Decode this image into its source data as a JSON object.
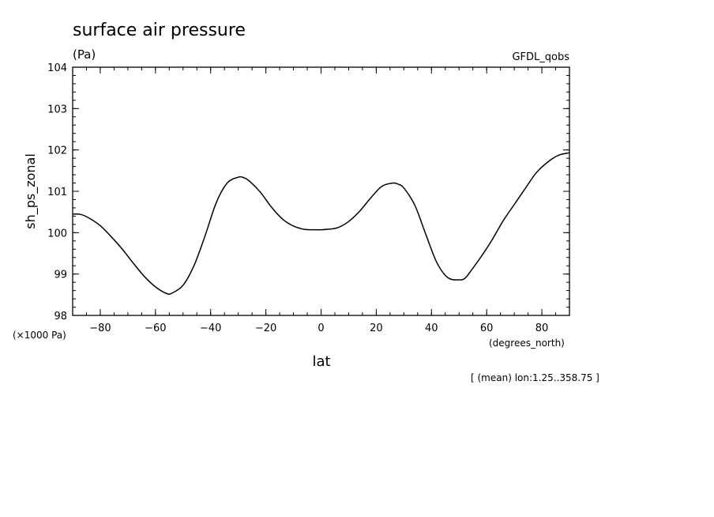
{
  "chart_data": {
    "type": "line",
    "title": "surface air pressure",
    "units": "(Pa)",
    "source_label": "GFDL_qobs",
    "ylabel": "sh_ps_zonal",
    "xlabel": "lat",
    "x_units": "(degrees_north)",
    "y_scale_note": "(×1000 Pa)",
    "footnote": "[ (mean) lon:1.25..358.75 ]",
    "xlim": [
      -90,
      90
    ],
    "ylim": [
      98,
      104
    ],
    "x_ticks": [
      -80,
      -60,
      -40,
      -20,
      0,
      20,
      40,
      60,
      80
    ],
    "x_tick_labels": [
      "−80",
      "−60",
      "−40",
      "−20",
      "0",
      "20",
      "40",
      "60",
      "80"
    ],
    "y_ticks": [
      98,
      99,
      100,
      101,
      102,
      103,
      104
    ],
    "y_tick_labels": [
      "98",
      "99",
      "100",
      "101",
      "102",
      "103",
      "104"
    ],
    "x_minor_step": 5,
    "y_minor_step": 0.2,
    "grid": false,
    "series": [
      {
        "color": "#000000",
        "x": [
          -90,
          -87,
          -84,
          -80,
          -76,
          -72,
          -68,
          -64,
          -60,
          -56,
          -54,
          -50,
          -46,
          -42,
          -38,
          -34,
          -30,
          -28,
          -26,
          -22,
          -18,
          -14,
          -10,
          -6,
          -2,
          0,
          2,
          6,
          10,
          14,
          18,
          22,
          26,
          28,
          30,
          34,
          38,
          42,
          46,
          50,
          52,
          54,
          58,
          62,
          66,
          70,
          74,
          78,
          82,
          86,
          90
        ],
        "y": [
          100.45,
          100.44,
          100.35,
          100.17,
          99.9,
          99.6,
          99.26,
          98.94,
          98.69,
          98.53,
          98.54,
          98.73,
          99.21,
          99.93,
          100.72,
          101.2,
          101.34,
          101.33,
          101.25,
          100.98,
          100.62,
          100.33,
          100.16,
          100.08,
          100.07,
          100.07,
          100.08,
          100.12,
          100.27,
          100.52,
          100.84,
          101.12,
          101.2,
          101.17,
          101.08,
          100.66,
          99.95,
          99.27,
          98.91,
          98.86,
          98.89,
          99.05,
          99.42,
          99.83,
          100.29,
          100.68,
          101.07,
          101.45,
          101.7,
          101.87,
          101.93
        ]
      }
    ]
  }
}
